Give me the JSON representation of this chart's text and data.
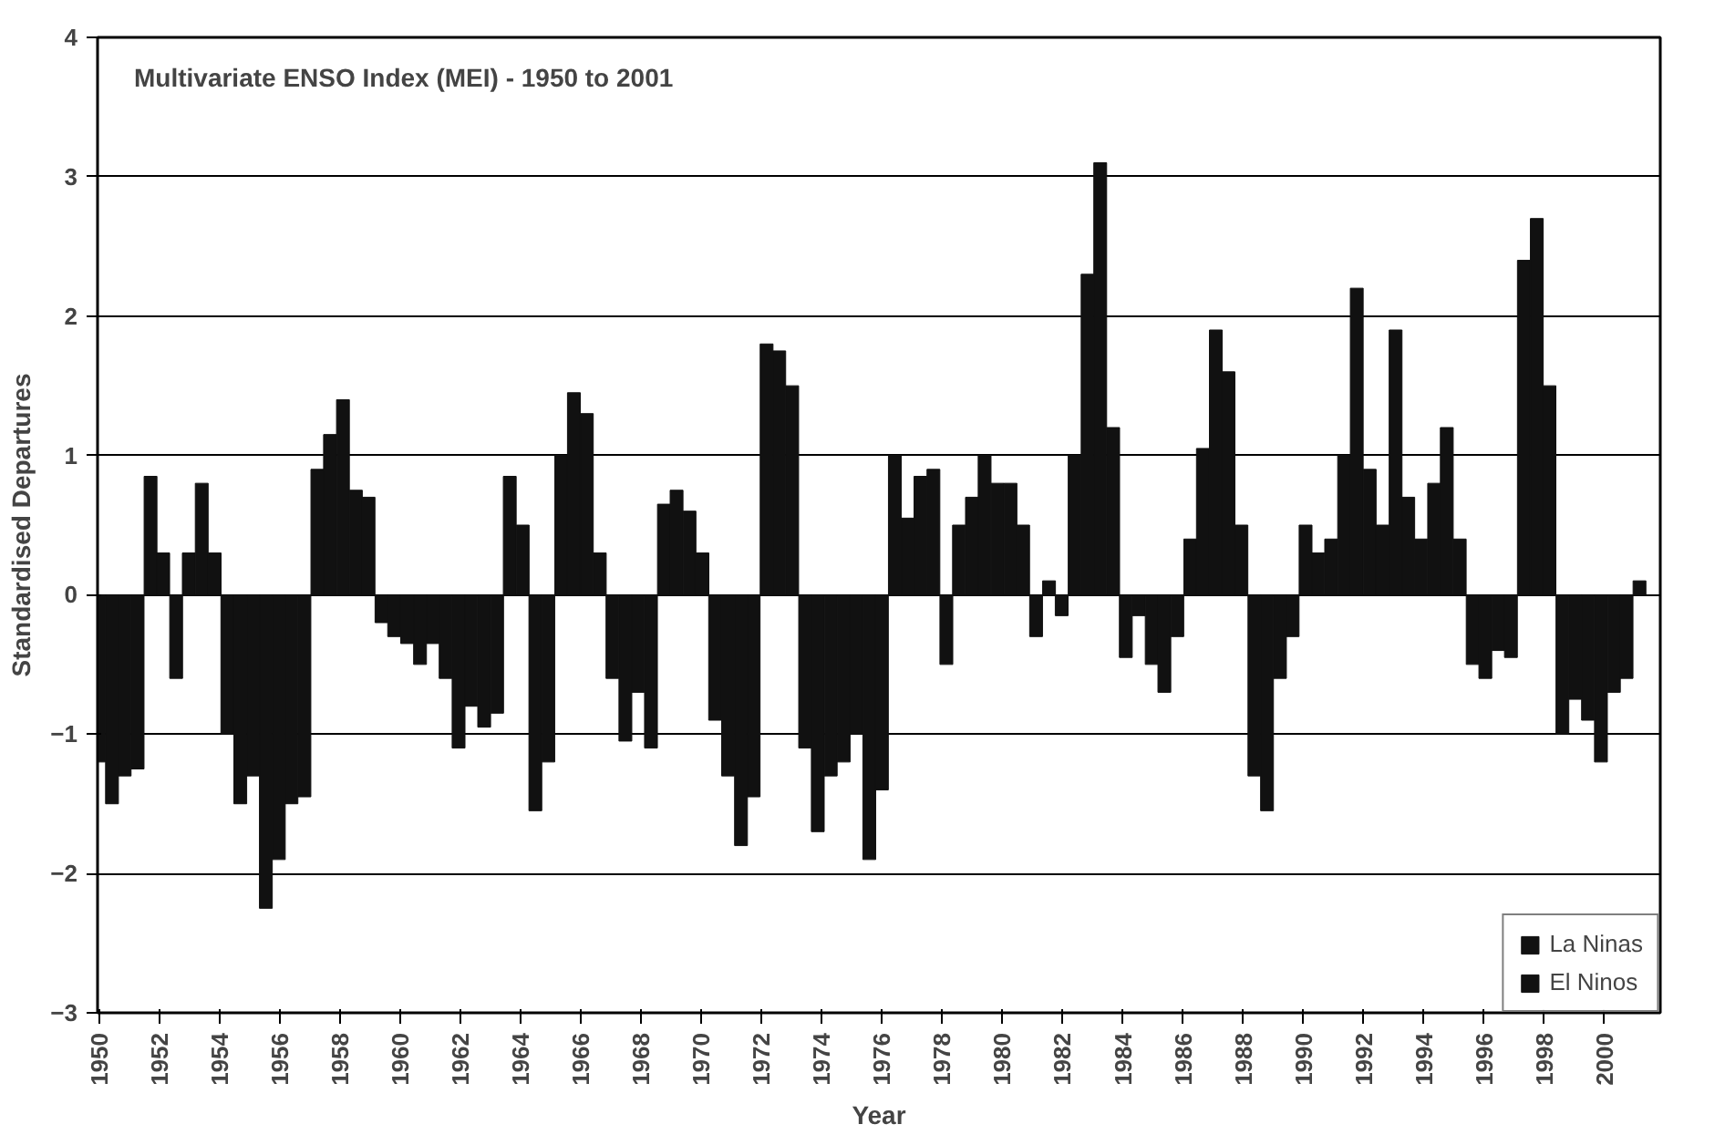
{
  "chart_data": {
    "type": "bar",
    "title": "Multivariate ENSO Index (MEI) - 1950 to 2001",
    "xlabel": "Year",
    "ylabel": "Standardised Departures",
    "x": [
      1950.0,
      1950.43,
      1950.85,
      1951.28,
      1951.71,
      1952.13,
      1952.56,
      1952.98,
      1953.41,
      1953.84,
      1954.26,
      1954.69,
      1955.12,
      1955.54,
      1955.97,
      1956.39,
      1956.82,
      1957.25,
      1957.67,
      1958.1,
      1958.53,
      1958.95,
      1959.38,
      1959.8,
      1960.23,
      1960.66,
      1961.08,
      1961.51,
      1961.94,
      1962.36,
      1962.79,
      1963.22,
      1963.64,
      1964.07,
      1964.49,
      1964.92,
      1965.35,
      1965.77,
      1966.2,
      1966.63,
      1967.05,
      1967.48,
      1967.9,
      1968.33,
      1968.76,
      1969.18,
      1969.61,
      1970.04,
      1970.46,
      1970.89,
      1971.32,
      1971.74,
      1972.17,
      1972.59,
      1973.02,
      1973.45,
      1973.87,
      1974.3,
      1974.73,
      1975.15,
      1975.58,
      1976.0,
      1976.43,
      1976.86,
      1977.28,
      1977.71,
      1978.14,
      1978.56,
      1978.99,
      1979.41,
      1979.84,
      1980.27,
      1980.69,
      1981.12,
      1981.55,
      1981.97,
      1982.4,
      1982.83,
      1983.25,
      1983.68,
      1984.1,
      1984.53,
      1984.96,
      1985.38,
      1985.81,
      1986.24,
      1986.66,
      1987.09,
      1987.51,
      1987.94,
      1988.37,
      1988.79,
      1989.22,
      1989.64,
      1990.07,
      1990.49,
      1990.92,
      1991.35,
      1991.77,
      1992.2,
      1992.63,
      1993.06,
      1993.48,
      1993.91,
      1994.34,
      1994.76,
      1995.19,
      1995.62,
      1996.04,
      1996.47,
      1996.89,
      1997.32,
      1997.75,
      1998.17,
      1998.6,
      1999.03,
      1999.45,
      1999.88,
      2000.31,
      2000.73,
      2001.16
    ],
    "series": [
      {
        "name": "La Ninas",
        "color": "#111111",
        "values": [
          -1.2,
          -1.5,
          -1.3,
          -1.25,
          null,
          null,
          -0.6,
          null,
          null,
          null,
          -1.0,
          -1.5,
          -1.3,
          -2.25,
          -1.9,
          -1.5,
          -1.45,
          null,
          null,
          null,
          null,
          null,
          -0.2,
          -0.3,
          -0.35,
          -0.5,
          -0.35,
          -0.6,
          -1.1,
          -0.8,
          -0.95,
          -0.85,
          null,
          null,
          -1.55,
          -1.2,
          null,
          null,
          null,
          null,
          -0.6,
          -1.05,
          -0.7,
          -1.1,
          null,
          null,
          null,
          null,
          -0.9,
          -1.3,
          -1.8,
          -1.45,
          null,
          null,
          null,
          -1.1,
          -1.7,
          -1.3,
          -1.2,
          -1.0,
          -1.9,
          -1.4,
          null,
          null,
          null,
          null,
          -0.5,
          null,
          null,
          null,
          null,
          null,
          null,
          -0.3,
          null,
          -0.15,
          null,
          null,
          null,
          null,
          -0.45,
          -0.15,
          -0.5,
          -0.7,
          -0.3,
          null,
          null,
          null,
          null,
          null,
          -1.3,
          -1.55,
          -0.6,
          -0.3,
          null,
          null,
          null,
          null,
          null,
          null,
          null,
          null,
          null,
          null,
          null,
          null,
          null,
          -0.5,
          -0.6,
          -0.4,
          -0.45,
          null,
          null,
          null,
          -1.0,
          -0.75,
          -0.9,
          -1.2,
          -0.7,
          -0.6,
          null
        ]
      },
      {
        "name": "El Ninos",
        "color": "#111111",
        "values": [
          null,
          null,
          null,
          null,
          0.85,
          0.3,
          null,
          0.3,
          0.8,
          0.3,
          null,
          null,
          null,
          null,
          null,
          null,
          null,
          0.9,
          1.15,
          1.4,
          0.75,
          0.7,
          null,
          null,
          null,
          null,
          null,
          null,
          null,
          null,
          null,
          null,
          0.85,
          0.5,
          null,
          null,
          1.0,
          1.45,
          1.3,
          0.3,
          null,
          null,
          null,
          null,
          0.65,
          0.75,
          0.6,
          0.3,
          null,
          null,
          null,
          null,
          1.8,
          1.75,
          1.5,
          null,
          null,
          null,
          null,
          null,
          null,
          null,
          1.0,
          0.55,
          0.85,
          0.9,
          null,
          0.5,
          0.7,
          1.0,
          0.8,
          0.8,
          0.5,
          null,
          0.1,
          null,
          1.0,
          2.3,
          3.1,
          1.2,
          null,
          null,
          null,
          null,
          null,
          0.4,
          1.05,
          1.9,
          1.6,
          0.5,
          null,
          null,
          null,
          null,
          0.5,
          0.3,
          0.4,
          1.0,
          2.2,
          0.9,
          0.5,
          1.9,
          0.7,
          0.4,
          0.8,
          1.2,
          0.4,
          null,
          null,
          null,
          null,
          2.4,
          2.7,
          1.5,
          null,
          null,
          null,
          null,
          null,
          null,
          0.1
        ]
      }
    ],
    "xlim": [
      1949.95,
      2001.85
    ],
    "xticks": [
      1950,
      1952,
      1954,
      1956,
      1958,
      1960,
      1962,
      1964,
      1966,
      1968,
      1970,
      1972,
      1974,
      1976,
      1978,
      1980,
      1982,
      1984,
      1986,
      1988,
      1990,
      1992,
      1994,
      1996,
      1998,
      2000
    ],
    "ylim": [
      -3,
      4
    ],
    "yticks": [
      -3,
      -2,
      -1,
      0,
      1,
      2,
      3,
      4
    ],
    "grid": "y",
    "legend": "bottom right"
  }
}
